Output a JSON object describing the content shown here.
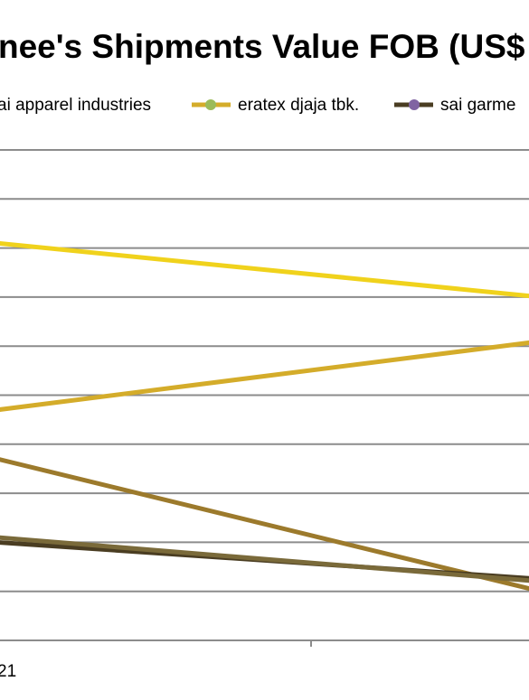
{
  "chart_data": {
    "type": "line",
    "title": "nee's Shipments Value FOB (US$",
    "x_tick_labels": [
      "21"
    ],
    "x_positions": [
      0,
      1
    ],
    "y_range": [
      0,
      10
    ],
    "grid": true,
    "legend_position": "top",
    "series": [
      {
        "name": "ai apparel industries",
        "color": "#9c7a2c",
        "marker_color": "#9c7a2c",
        "values": [
          3.7,
          1.0
        ]
      },
      {
        "name": "eratex djaja tbk.",
        "color": "#d4ac2a",
        "marker_color": "#9bbb59",
        "values": [
          4.7,
          6.1
        ]
      },
      {
        "name": "sai garme",
        "color": "#4a3d22",
        "marker_color": "#8064a2",
        "values": [
          2.0,
          1.25
        ]
      },
      {
        "name": "",
        "color": "#f0d21c",
        "values": [
          8.1,
          7.0
        ]
      },
      {
        "name": "",
        "color": "#7a6a3a",
        "values": [
          2.1,
          1.2
        ]
      }
    ]
  }
}
